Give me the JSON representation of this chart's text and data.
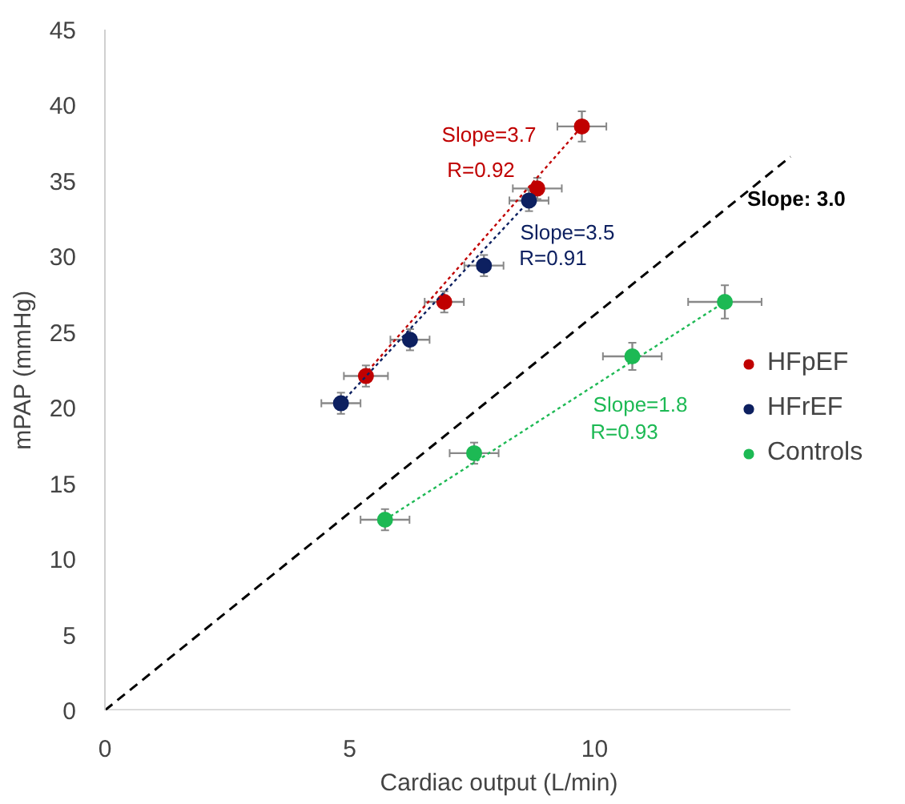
{
  "chart_data": {
    "type": "scatter",
    "xlabel": "Cardiac output (L/min)",
    "ylabel": "mPAP (mmHg)",
    "xlim": [
      0,
      14
    ],
    "ylim": [
      0,
      45
    ],
    "xticks": [
      0,
      5,
      10
    ],
    "yticks": [
      0,
      5,
      10,
      15,
      20,
      25,
      30,
      35,
      40,
      45
    ],
    "grid": false,
    "legend": "right",
    "marker": "circle",
    "series": [
      {
        "name": "HFpEF",
        "color": "#c00000",
        "x": [
          5.33,
          6.93,
          8.83,
          9.74
        ],
        "values": [
          22.1,
          27.0,
          34.5,
          38.6
        ],
        "xerrors": [
          0.45,
          0.4,
          0.5,
          0.5
        ],
        "errors": [
          0.7,
          0.7,
          0.7,
          1.0
        ]
      },
      {
        "name": "HFrEF",
        "color": "#0d2060",
        "x": [
          4.82,
          6.23,
          7.74,
          8.66
        ],
        "values": [
          20.3,
          24.5,
          29.4,
          33.7
        ],
        "xerrors": [
          0.4,
          0.4,
          0.4,
          0.4
        ],
        "errors": [
          0.7,
          0.7,
          0.7,
          0.7
        ]
      },
      {
        "name": "Controls",
        "color": "#1db954",
        "x": [
          5.72,
          7.54,
          10.77,
          12.66
        ],
        "values": [
          12.6,
          17.0,
          23.4,
          27.0
        ],
        "xerrors": [
          0.5,
          0.5,
          0.6,
          0.75
        ],
        "errors": [
          0.7,
          0.7,
          0.9,
          1.1
        ]
      },
      {
        "type": "line",
        "marker": "none",
        "line_style": "dotted",
        "color": "#c00000",
        "x": [
          5.2,
          9.74
        ],
        "values": [
          21.8,
          38.6
        ]
      },
      {
        "type": "line",
        "marker": "none",
        "line_style": "dotted",
        "color": "#0d2060",
        "x": [
          4.82,
          8.7
        ],
        "values": [
          20.3,
          33.8
        ]
      },
      {
        "type": "line",
        "marker": "none",
        "line_style": "dotted",
        "color": "#1db954",
        "x": [
          5.72,
          12.66
        ],
        "values": [
          12.6,
          27.0
        ]
      },
      {
        "type": "line",
        "marker": "none",
        "line_style": "dashed",
        "color": "#000000",
        "x": [
          0,
          14
        ],
        "values": [
          0,
          36.6
        ]
      }
    ],
    "annotations": [
      "Slope=3.7",
      "R=0.92",
      "Slope=3.5",
      "R=0.91",
      "Slope=1.8",
      "R=0.93",
      "Slope: 3.0"
    ]
  }
}
